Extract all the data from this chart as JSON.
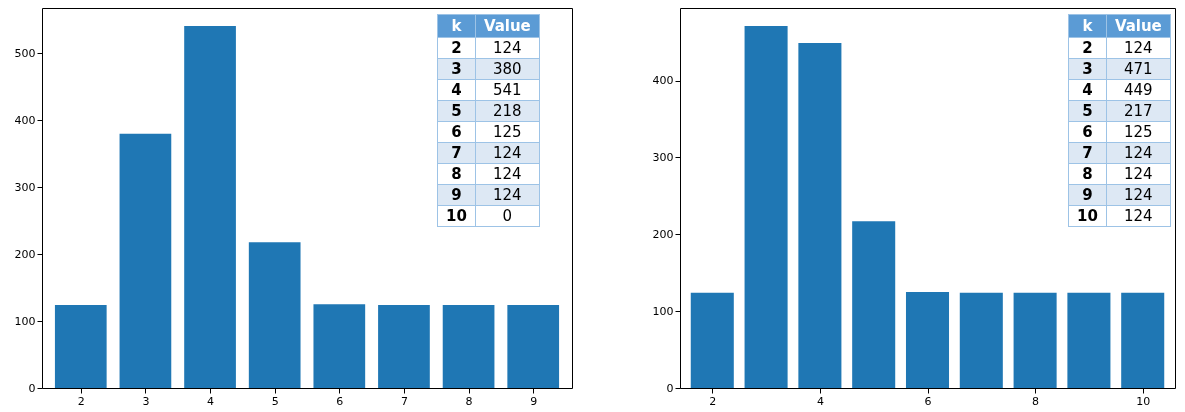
{
  "chart_data": [
    {
      "type": "bar",
      "x": [
        2,
        3,
        4,
        5,
        6,
        7,
        8,
        9
      ],
      "values": [
        124,
        380,
        541,
        218,
        125,
        124,
        124,
        124
      ],
      "color": "#1f77b4",
      "xlim": [
        1.4,
        9.6
      ],
      "xticks": [
        2,
        3,
        4,
        5,
        6,
        7,
        8,
        9
      ],
      "ylim": [
        0,
        568
      ],
      "yticks": [
        0,
        100,
        200,
        300,
        400,
        500
      ],
      "grid": false,
      "annotations": [
        "k",
        "Value",
        "2",
        "124",
        "3",
        "380",
        "4",
        "541",
        "5",
        "218",
        "6",
        "125",
        "7",
        "124",
        "8",
        "124",
        "9",
        "124",
        "10",
        "0"
      ]
    },
    {
      "type": "bar",
      "x": [
        2,
        3,
        4,
        5,
        6,
        7,
        8,
        9,
        10
      ],
      "values": [
        124,
        471,
        449,
        217,
        125,
        124,
        124,
        124,
        124
      ],
      "color": "#1f77b4",
      "xlim": [
        1.4,
        10.6
      ],
      "xticks": [
        2,
        4,
        6,
        8,
        10
      ],
      "ylim": [
        0,
        494.5
      ],
      "yticks": [
        0,
        100,
        200,
        300,
        400
      ],
      "grid": false,
      "annotations": [
        "k",
        "Value",
        "2",
        "124",
        "3",
        "471",
        "4",
        "449",
        "5",
        "217",
        "6",
        "125",
        "7",
        "124",
        "8",
        "124",
        "9",
        "124",
        "10",
        "124"
      ]
    }
  ]
}
